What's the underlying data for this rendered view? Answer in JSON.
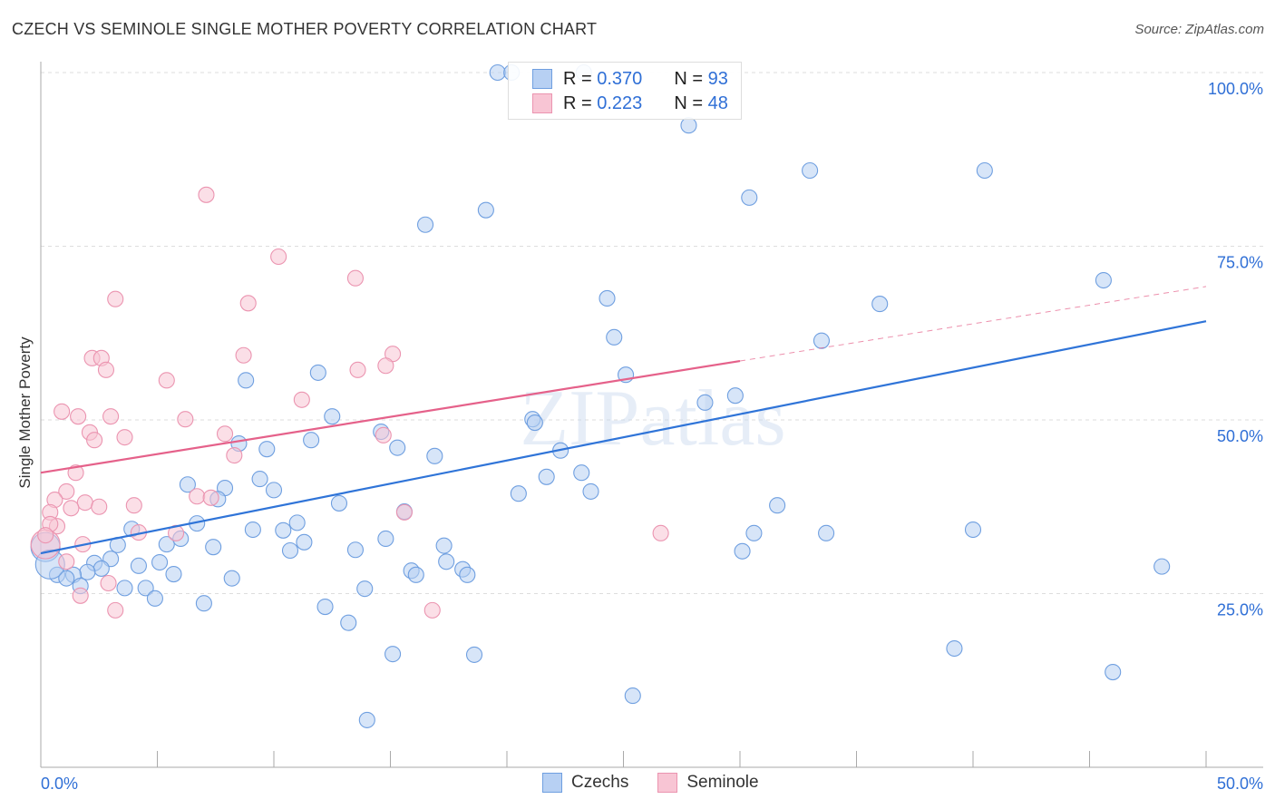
{
  "title": "CZECH VS SEMINOLE SINGLE MOTHER POVERTY CORRELATION CHART",
  "source": "Source: ZipAtlas.com",
  "watermark": "ZIPatlas",
  "colors": {
    "czechs": "#6f9fe0",
    "czechs_fill": "#b7d0f3",
    "czechs_line": "#2f74d8",
    "seminole": "#eb94b0",
    "seminole_fill": "#f8c5d4",
    "seminole_line": "#e5618a",
    "value_text": "#2f6fd6"
  },
  "legend": {
    "rows": [
      {
        "r_label": "R =",
        "r_value": "0.370",
        "n_label": "N =",
        "n_value": "93"
      },
      {
        "r_label": "R =",
        "r_value": "0.223",
        "n_label": "N =",
        "n_value": "48"
      }
    ]
  },
  "chart_data": {
    "type": "scatter",
    "title": "CZECH VS SEMINOLE SINGLE MOTHER POVERTY CORRELATION CHART",
    "xlabel": "",
    "ylabel": "Single Mother Poverty",
    "xlim": [
      0,
      50
    ],
    "ylim": [
      0,
      100
    ],
    "x_tick_labels": [
      "0.0%",
      "50.0%"
    ],
    "y_tick_labels": [
      "100.0%",
      "75.0%",
      "50.0%",
      "25.0%"
    ],
    "y_ticks": [
      100,
      75,
      50,
      25
    ],
    "grid": true,
    "legend_placement": "top-center",
    "series": [
      {
        "name": "Czechs",
        "r": 0.37,
        "n": 93,
        "trend": {
          "x": [
            0,
            50
          ],
          "y": [
            30.8,
            64.2
          ],
          "dashed_after": null
        },
        "points": [
          [
            19.6,
            100
          ],
          [
            20.2,
            100
          ],
          [
            23.3,
            100
          ],
          [
            27.8,
            92.4
          ],
          [
            33.0,
            85.9
          ],
          [
            40.5,
            85.9
          ],
          [
            30.4,
            82.0
          ],
          [
            19.1,
            80.2
          ],
          [
            16.5,
            78.1
          ],
          [
            24.3,
            67.5
          ],
          [
            36.0,
            66.7
          ],
          [
            45.6,
            70.1
          ],
          [
            24.6,
            61.9
          ],
          [
            33.5,
            61.4
          ],
          [
            8.8,
            55.7
          ],
          [
            11.9,
            56.8
          ],
          [
            25.1,
            56.5
          ],
          [
            28.5,
            52.5
          ],
          [
            29.8,
            53.5
          ],
          [
            12.5,
            50.5
          ],
          [
            21.1,
            50.1
          ],
          [
            21.2,
            49.6
          ],
          [
            14.6,
            48.3
          ],
          [
            8.5,
            46.6
          ],
          [
            9.7,
            45.8
          ],
          [
            11.6,
            47.1
          ],
          [
            15.3,
            46.0
          ],
          [
            16.9,
            44.8
          ],
          [
            22.3,
            45.6
          ],
          [
            6.3,
            40.7
          ],
          [
            7.9,
            40.2
          ],
          [
            7.6,
            38.6
          ],
          [
            9.4,
            41.5
          ],
          [
            10.0,
            39.9
          ],
          [
            20.5,
            39.4
          ],
          [
            21.7,
            41.8
          ],
          [
            23.2,
            42.4
          ],
          [
            23.6,
            39.7
          ],
          [
            12.8,
            38.0
          ],
          [
            31.6,
            37.7
          ],
          [
            6.7,
            35.1
          ],
          [
            3.9,
            34.3
          ],
          [
            9.1,
            34.2
          ],
          [
            10.4,
            34.1
          ],
          [
            11.0,
            35.2
          ],
          [
            15.6,
            36.8
          ],
          [
            40.0,
            34.2
          ],
          [
            33.7,
            33.7
          ],
          [
            30.6,
            33.7
          ],
          [
            3.3,
            32.0
          ],
          [
            5.4,
            32.1
          ],
          [
            6.0,
            32.9
          ],
          [
            7.4,
            31.7
          ],
          [
            11.3,
            32.4
          ],
          [
            13.5,
            31.3
          ],
          [
            14.8,
            32.9
          ],
          [
            17.3,
            31.9
          ],
          [
            30.1,
            31.1
          ],
          [
            3.0,
            30.0
          ],
          [
            2.3,
            29.4
          ],
          [
            4.2,
            29.0
          ],
          [
            5.1,
            29.5
          ],
          [
            10.7,
            31.2
          ],
          [
            17.4,
            29.6
          ],
          [
            2.6,
            28.6
          ],
          [
            2.0,
            28.1
          ],
          [
            5.7,
            27.8
          ],
          [
            15.9,
            28.3
          ],
          [
            16.1,
            27.7
          ],
          [
            18.1,
            28.5
          ],
          [
            18.3,
            27.7
          ],
          [
            48.1,
            28.9
          ],
          [
            1.4,
            27.7
          ],
          [
            0.7,
            27.7
          ],
          [
            1.1,
            27.2
          ],
          [
            1.7,
            26.1
          ],
          [
            3.6,
            25.8
          ],
          [
            4.5,
            25.8
          ],
          [
            4.9,
            24.3
          ],
          [
            8.2,
            27.2
          ],
          [
            13.9,
            25.7
          ],
          [
            7.0,
            23.6
          ],
          [
            12.2,
            23.1
          ],
          [
            13.2,
            20.8
          ],
          [
            15.1,
            16.3
          ],
          [
            18.6,
            16.2
          ],
          [
            39.2,
            17.1
          ],
          [
            46.0,
            13.7
          ],
          [
            25.4,
            10.3
          ],
          [
            14.0,
            6.8
          ],
          [
            0.2,
            31.7,
            "large"
          ],
          [
            0.4,
            29.2,
            "large"
          ]
        ]
      },
      {
        "name": "Seminole",
        "r": 0.223,
        "n": 48,
        "trend": {
          "x": [
            0,
            50
          ],
          "y": [
            42.4,
            69.2
          ],
          "dashed_after": 30
        },
        "points": [
          [
            7.1,
            82.4
          ],
          [
            10.2,
            73.5
          ],
          [
            13.5,
            70.4
          ],
          [
            3.2,
            67.4
          ],
          [
            8.9,
            66.8
          ],
          [
            8.7,
            59.3
          ],
          [
            15.1,
            59.5
          ],
          [
            2.2,
            58.9
          ],
          [
            2.6,
            58.9
          ],
          [
            2.8,
            57.2
          ],
          [
            5.4,
            55.7
          ],
          [
            13.6,
            57.2
          ],
          [
            14.8,
            57.8
          ],
          [
            11.2,
            52.9
          ],
          [
            0.9,
            51.2
          ],
          [
            1.6,
            50.5
          ],
          [
            3.0,
            50.5
          ],
          [
            6.2,
            50.1
          ],
          [
            2.1,
            48.2
          ],
          [
            2.3,
            47.1
          ],
          [
            3.6,
            47.5
          ],
          [
            7.9,
            48.0
          ],
          [
            8.3,
            44.9
          ],
          [
            14.7,
            47.8
          ],
          [
            1.5,
            42.4
          ],
          [
            1.1,
            39.7
          ],
          [
            0.6,
            38.5
          ],
          [
            1.9,
            38.1
          ],
          [
            2.5,
            37.5
          ],
          [
            4.0,
            37.7
          ],
          [
            6.7,
            39.0
          ],
          [
            7.3,
            38.8
          ],
          [
            1.3,
            37.3
          ],
          [
            0.4,
            36.7
          ],
          [
            0.7,
            34.7
          ],
          [
            0.4,
            35.0
          ],
          [
            4.2,
            33.8
          ],
          [
            5.8,
            33.7
          ],
          [
            1.8,
            32.1
          ],
          [
            1.1,
            29.6
          ],
          [
            2.9,
            26.5
          ],
          [
            1.7,
            24.7
          ],
          [
            3.2,
            22.6
          ],
          [
            16.8,
            22.6
          ],
          [
            26.6,
            33.7
          ],
          [
            15.6,
            36.7
          ],
          [
            0.2,
            32.1,
            "large"
          ],
          [
            0.2,
            33.4
          ]
        ]
      }
    ]
  }
}
